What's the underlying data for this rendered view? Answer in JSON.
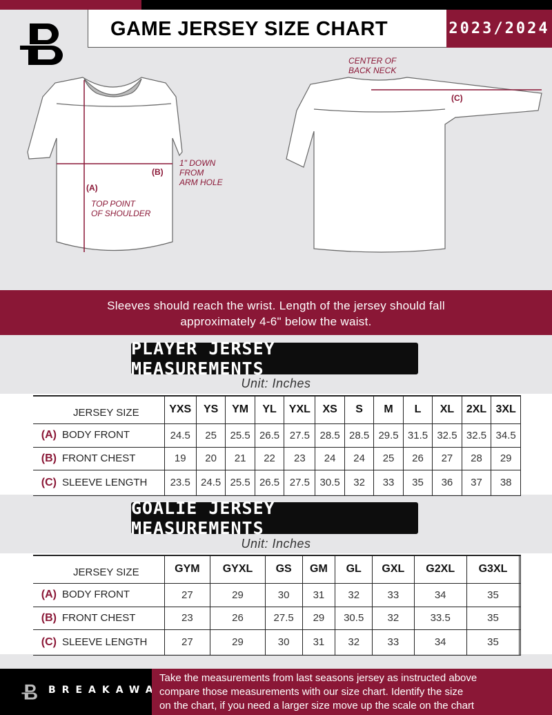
{
  "header": {
    "title": "GAME JERSEY SIZE CHART",
    "season": "2023/2024",
    "logo_text": "B"
  },
  "diagram": {
    "front": {
      "label_a": "(A)",
      "label_a_desc": [
        "TOP POINT",
        "OF SHOULDER"
      ],
      "label_b": "(B)",
      "label_b_desc": [
        "1\" DOWN",
        "FROM",
        "ARM HOLE"
      ]
    },
    "back": {
      "center_label": [
        "CENTER OF",
        "BACK NECK"
      ],
      "label_c": "(C)"
    }
  },
  "note": [
    "Sleeves should reach the wrist. Length of the jersey should fall",
    "approximately 4-6\" below the waist."
  ],
  "player": {
    "heading": "PLAYER JERSEY MEASUREMENTS",
    "unit": "Unit: Inches",
    "size_header": "JERSEY SIZE",
    "sizes": [
      "YXS",
      "YS",
      "YM",
      "YL",
      "YXL",
      "XS",
      "S",
      "M",
      "L",
      "XL",
      "2XL",
      "3XL"
    ],
    "rows": [
      {
        "letter": "(A)",
        "label": "BODY FRONT",
        "values": [
          "24.5",
          "25",
          "25.5",
          "26.5",
          "27.5",
          "28.5",
          "28.5",
          "29.5",
          "31.5",
          "32.5",
          "32.5",
          "34.5"
        ]
      },
      {
        "letter": "(B)",
        "label": "FRONT CHEST",
        "values": [
          "19",
          "20",
          "21",
          "22",
          "23",
          "24",
          "24",
          "25",
          "26",
          "27",
          "28",
          "29"
        ]
      },
      {
        "letter": "(C)",
        "label": "SLEEVE LENGTH",
        "values": [
          "23.5",
          "24.5",
          "25.5",
          "26.5",
          "27.5",
          "30.5",
          "32",
          "33",
          "35",
          "36",
          "37",
          "38"
        ]
      }
    ]
  },
  "goalie": {
    "heading": "GOALIE JERSEY MEASUREMENTS",
    "unit": "Unit: Inches",
    "size_header": "JERSEY SIZE",
    "sizes": [
      "GYM",
      "GYXL",
      "GS",
      "GM",
      "GL",
      "GXL",
      "G2XL",
      "G3XL",
      ""
    ],
    "rows": [
      {
        "letter": "(A)",
        "label": "BODY FRONT",
        "values": [
          "27",
          "29",
          "30",
          "31",
          "32",
          "33",
          "34",
          "35",
          ""
        ]
      },
      {
        "letter": "(B)",
        "label": "FRONT CHEST",
        "values": [
          "23",
          "26",
          "27.5",
          "29",
          "30.5",
          "32",
          "33.5",
          "35",
          ""
        ]
      },
      {
        "letter": "(C)",
        "label": "SLEEVE LENGTH",
        "values": [
          "27",
          "29",
          "30",
          "31",
          "32",
          "33",
          "34",
          "35",
          ""
        ]
      }
    ]
  },
  "footer": {
    "brand": "BREAKAWAY",
    "instructions": [
      "Take the measurements from last seasons jersey as instructed above",
      "compare those measurements  with our size chart. Identify the size",
      "on the chart, if you need a larger size move up the scale on the chart"
    ]
  },
  "colors": {
    "accent": "#8a1736",
    "dark": "#000000",
    "background": "#e6e6e8"
  }
}
